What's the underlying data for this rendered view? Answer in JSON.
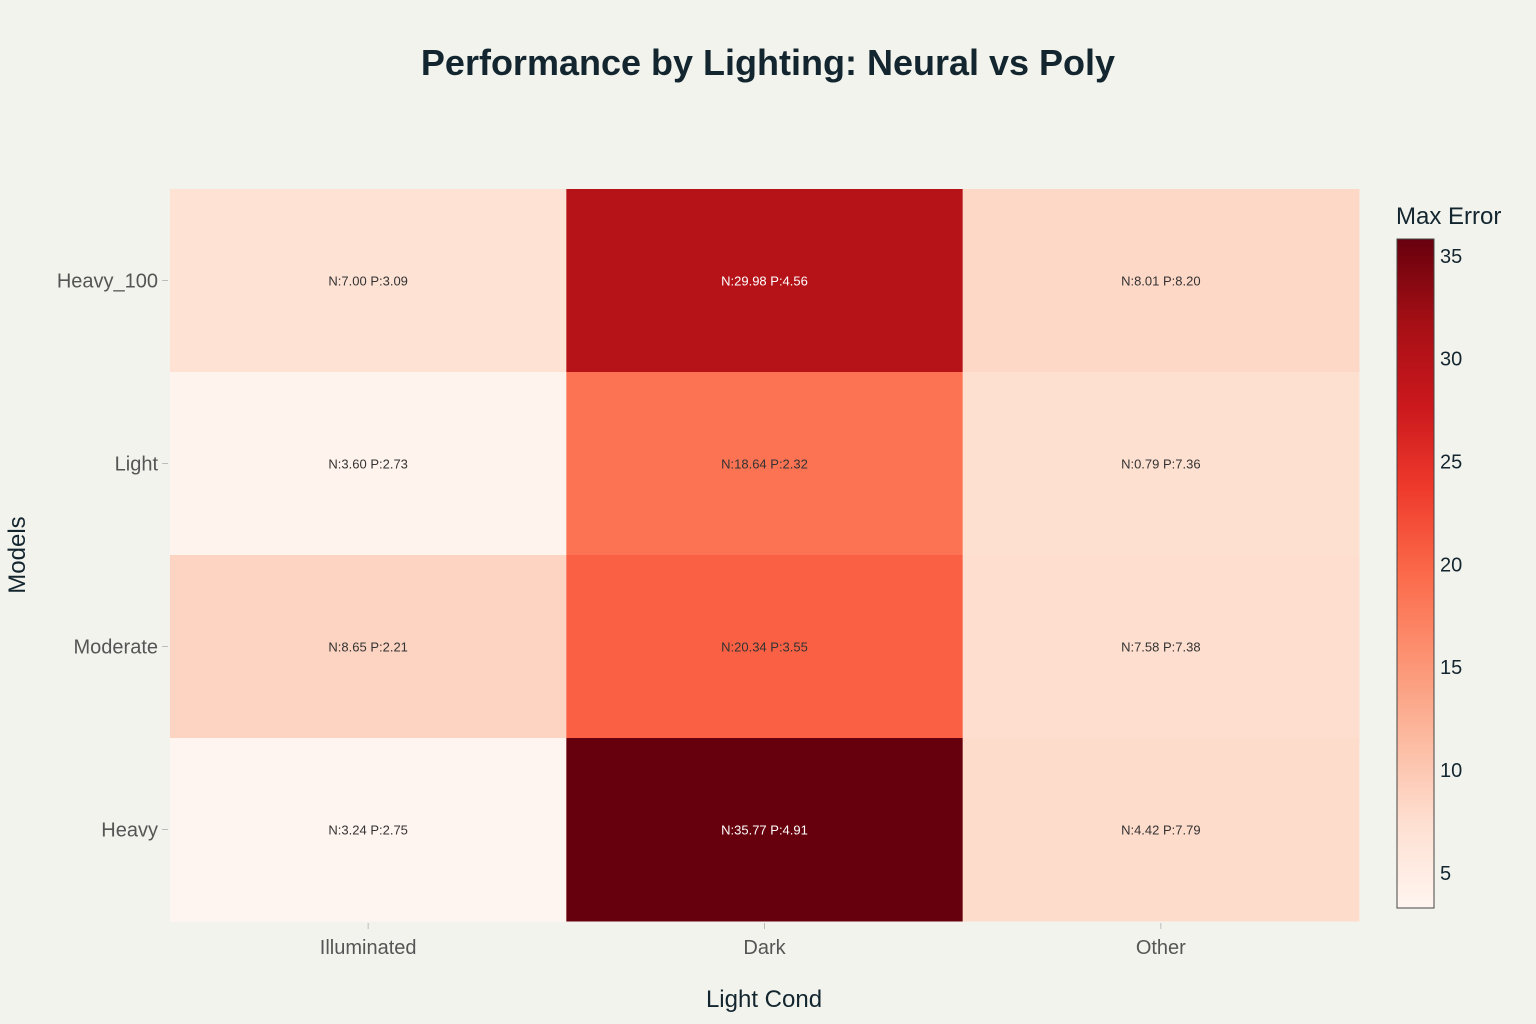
{
  "chart_data": {
    "type": "heatmap",
    "title": "Performance by Lighting: Neural vs Poly",
    "xlabel": "Light Cond",
    "ylabel": "Models",
    "x_categories": [
      "Illuminated",
      "Dark",
      "Other"
    ],
    "y_categories": [
      "Heavy_100",
      "Light",
      "Moderate",
      "Heavy"
    ],
    "values": [
      [
        7.0,
        29.98,
        8.2
      ],
      [
        3.6,
        18.64,
        7.36
      ],
      [
        8.65,
        20.34,
        7.58
      ],
      [
        3.24,
        35.77,
        7.79
      ]
    ],
    "cell_labels": [
      [
        "N:7.00 P:3.09",
        "N:29.98 P:4.56",
        "N:8.01 P:8.20"
      ],
      [
        "N:3.60 P:2.73",
        "N:18.64 P:2.32",
        "N:0.79 P:7.36"
      ],
      [
        "N:8.65 P:2.21",
        "N:20.34 P:3.55",
        "N:7.58 P:7.38"
      ],
      [
        "N:3.24 P:2.75",
        "N:35.77 P:4.91",
        "N:4.42 P:7.79"
      ]
    ],
    "colorbar": {
      "title": "Max Error",
      "range": [
        3.24,
        35.77
      ],
      "ticks": [
        5,
        10,
        15,
        20,
        25,
        30,
        35
      ],
      "colorscale": "Reds"
    },
    "grid": false
  }
}
